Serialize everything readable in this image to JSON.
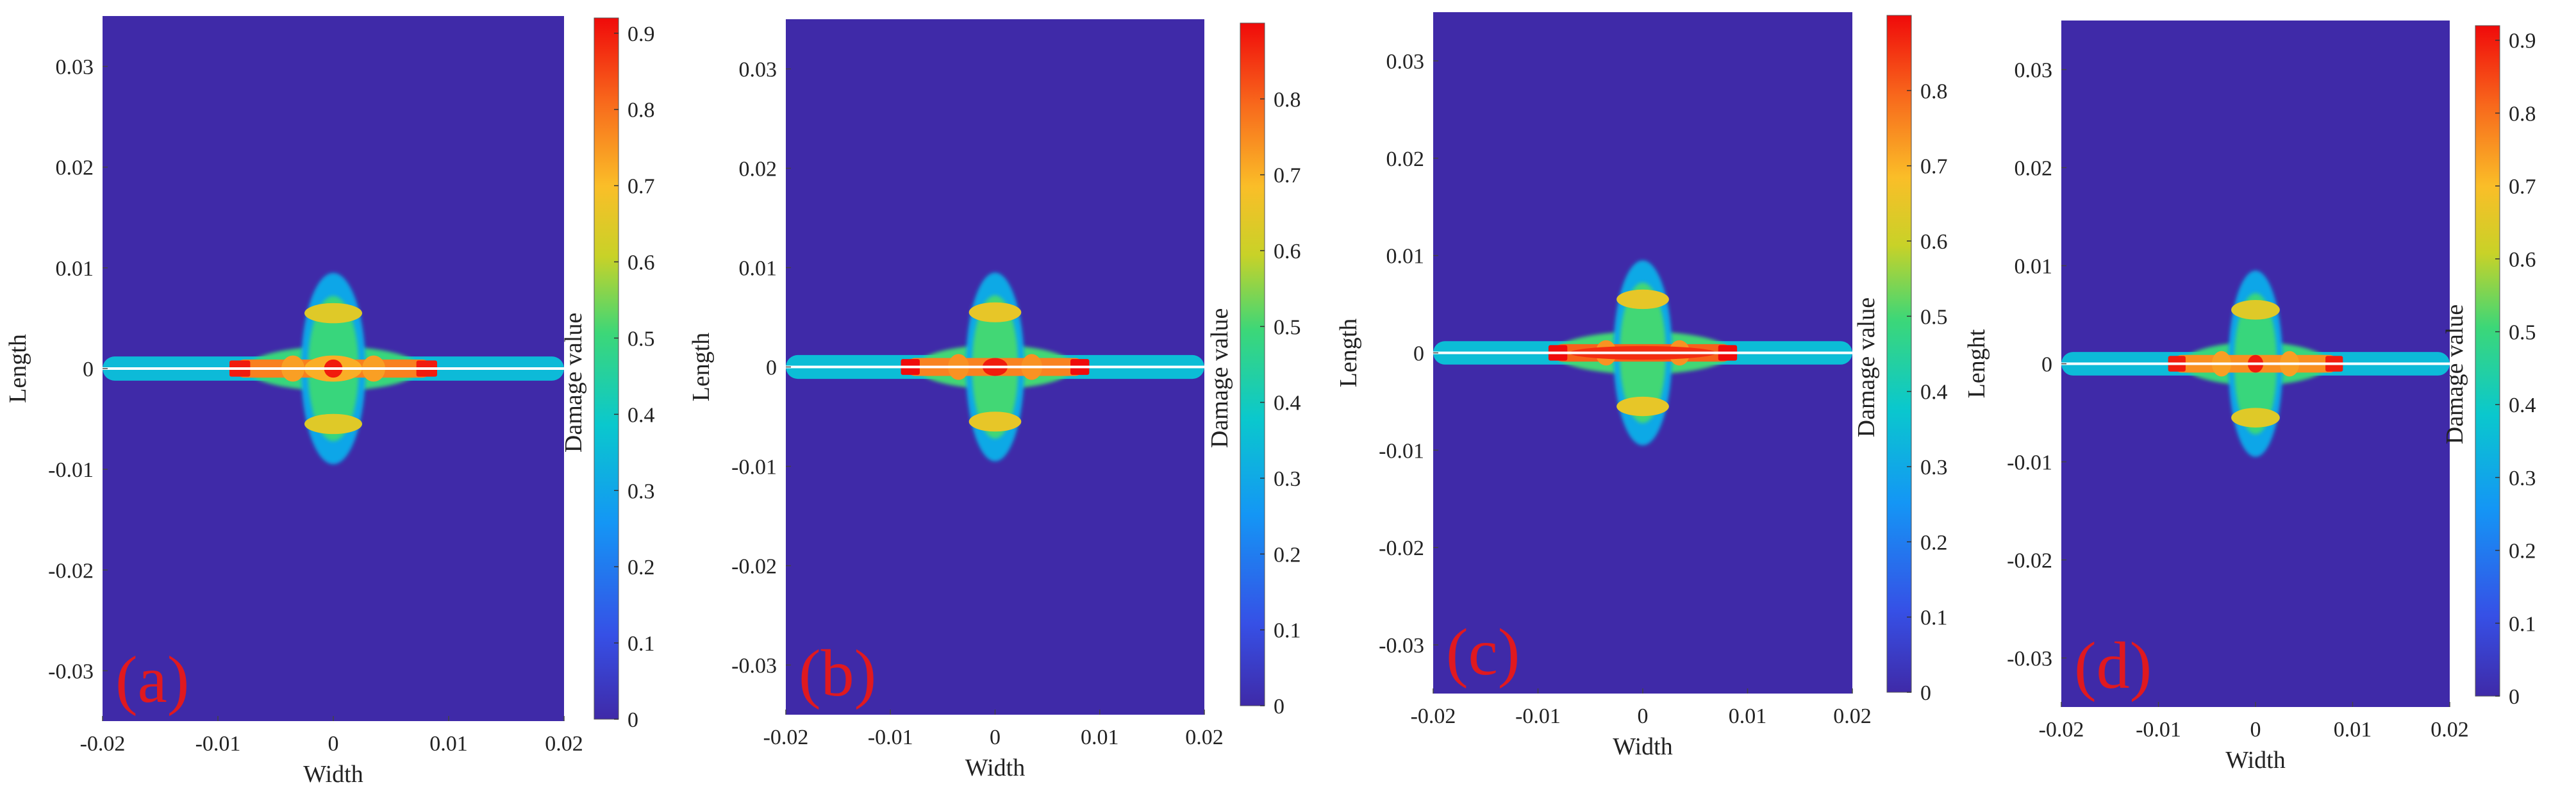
{
  "chart_data": [
    {
      "type": "heatmap",
      "panel_label": "(a)",
      "xlabel": "Width",
      "ylabel": "Length",
      "colorbar_label": "Damage value",
      "xlim": [
        -0.02,
        0.02
      ],
      "ylim": [
        -0.035,
        0.035
      ],
      "xticks": [
        -0.02,
        -0.01,
        0,
        0.01,
        0.02
      ],
      "xtick_labels": [
        "-0.02",
        "-0.01",
        "0",
        "0.01",
        "0.02"
      ],
      "yticks": [
        -0.03,
        -0.02,
        -0.01,
        0,
        0.01,
        0.02,
        0.03
      ],
      "ytick_labels": [
        "-0.03",
        "-0.02",
        "-0.01",
        "0",
        "0.01",
        "0.02",
        "0.03"
      ],
      "colorbar_range": [
        0,
        0.92
      ],
      "colorbar_ticks": [
        0,
        0.1,
        0.2,
        0.3,
        0.4,
        0.5,
        0.6,
        0.7,
        0.8,
        0.9
      ],
      "colorbar_tick_labels": [
        "0",
        "0.1",
        "0.2",
        "0.3",
        "0.4",
        "0.5",
        "0.6",
        "0.7",
        "0.8",
        "0.9"
      ],
      "crack": {
        "y": 0,
        "x_range": [
          -0.02,
          0.02
        ]
      },
      "damage_features": [
        {
          "kind": "band",
          "x_range": [
            -0.02,
            0.02
          ],
          "y_range": [
            -0.0012,
            0.0012
          ],
          "value": 0.35
        },
        {
          "kind": "halo",
          "x_range": [
            -0.0075,
            0.0075
          ],
          "y_range": [
            -0.0022,
            0.0022
          ],
          "value": 0.5
        },
        {
          "kind": "halo",
          "x_range": [
            -0.0028,
            0.0028
          ],
          "y_range": [
            -0.0095,
            0.0095
          ],
          "value": 0.3
        },
        {
          "kind": "halo",
          "x_range": [
            -0.0022,
            0.0022
          ],
          "y_range": [
            -0.0072,
            0.0072
          ],
          "value": 0.5
        },
        {
          "kind": "ring",
          "x_range": [
            -0.0025,
            0.0025
          ],
          "y_range": [
            0.0045,
            0.0065
          ],
          "value": 0.65
        },
        {
          "kind": "ring",
          "x_range": [
            -0.0025,
            0.0025
          ],
          "y_range": [
            -0.0065,
            -0.0045
          ],
          "value": 0.65
        },
        {
          "kind": "core",
          "x_range": [
            -0.0085,
            0.0085
          ],
          "y_range": [
            -0.0009,
            0.0009
          ],
          "value": 0.78
        },
        {
          "kind": "blob",
          "x_range": [
            -0.0045,
            -0.0025
          ],
          "y_range": [
            -0.0013,
            0.0013
          ],
          "value": 0.74
        },
        {
          "kind": "blob",
          "x_range": [
            0.0025,
            0.0045
          ],
          "y_range": [
            -0.0013,
            0.0013
          ],
          "value": 0.74
        },
        {
          "kind": "blob",
          "x_range": [
            -0.0025,
            0.0025
          ],
          "y_range": [
            -0.0013,
            0.0013
          ],
          "value": 0.72
        },
        {
          "kind": "peak",
          "x_range": [
            -0.0008,
            0.0008
          ],
          "y_range": [
            -0.0009,
            0.0009
          ],
          "value": 0.9
        },
        {
          "kind": "tip",
          "x_range": [
            -0.009,
            -0.0072
          ],
          "y_range": [
            -0.0008,
            0.0008
          ],
          "value": 0.9
        },
        {
          "kind": "tip",
          "x_range": [
            0.0072,
            0.009
          ],
          "y_range": [
            -0.0008,
            0.0008
          ],
          "value": 0.9
        }
      ]
    },
    {
      "type": "heatmap",
      "panel_label": "(b)",
      "xlabel": "Width",
      "ylabel": "Length",
      "colorbar_label": "Damage value",
      "xlim": [
        -0.02,
        0.02
      ],
      "ylim": [
        -0.035,
        0.035
      ],
      "xticks": [
        -0.02,
        -0.01,
        0,
        0.01,
        0.02
      ],
      "xtick_labels": [
        "-0.02",
        "-0.01",
        "0",
        "0.01",
        "0.02"
      ],
      "yticks": [
        -0.03,
        -0.02,
        -0.01,
        0,
        0.01,
        0.02,
        0.03
      ],
      "ytick_labels": [
        "-0.03",
        "-0.02",
        "-0.01",
        "0",
        "0.01",
        "0.02",
        "0.03"
      ],
      "colorbar_range": [
        0,
        0.9
      ],
      "colorbar_ticks": [
        0,
        0.1,
        0.2,
        0.3,
        0.4,
        0.5,
        0.6,
        0.7,
        0.8
      ],
      "colorbar_tick_labels": [
        "0",
        "0.1",
        "0.2",
        "0.3",
        "0.4",
        "0.5",
        "0.6",
        "0.7",
        "0.8"
      ],
      "crack": {
        "y": 0,
        "x_range": [
          -0.02,
          0.02
        ]
      },
      "damage_features": [
        {
          "kind": "band",
          "x_range": [
            -0.02,
            0.02
          ],
          "y_range": [
            -0.0012,
            0.0012
          ],
          "value": 0.35
        },
        {
          "kind": "halo",
          "x_range": [
            -0.0075,
            0.0075
          ],
          "y_range": [
            -0.0022,
            0.0022
          ],
          "value": 0.5
        },
        {
          "kind": "halo",
          "x_range": [
            -0.0028,
            0.0028
          ],
          "y_range": [
            -0.0095,
            0.0095
          ],
          "value": 0.3
        },
        {
          "kind": "halo",
          "x_range": [
            -0.0022,
            0.0022
          ],
          "y_range": [
            -0.0072,
            0.0072
          ],
          "value": 0.5
        },
        {
          "kind": "ring",
          "x_range": [
            -0.0025,
            0.0025
          ],
          "y_range": [
            0.0045,
            0.0065
          ],
          "value": 0.65
        },
        {
          "kind": "ring",
          "x_range": [
            -0.0025,
            0.0025
          ],
          "y_range": [
            -0.0065,
            -0.0045
          ],
          "value": 0.65
        },
        {
          "kind": "core",
          "x_range": [
            -0.0085,
            0.0085
          ],
          "y_range": [
            -0.0009,
            0.0009
          ],
          "value": 0.76
        },
        {
          "kind": "blob",
          "x_range": [
            -0.0045,
            -0.0025
          ],
          "y_range": [
            -0.0013,
            0.0013
          ],
          "value": 0.74
        },
        {
          "kind": "blob",
          "x_range": [
            0.0025,
            0.0045
          ],
          "y_range": [
            -0.0013,
            0.0013
          ],
          "value": 0.74
        },
        {
          "kind": "peak",
          "x_range": [
            -0.0012,
            0.0012
          ],
          "y_range": [
            -0.0009,
            0.0009
          ],
          "value": 0.88
        },
        {
          "kind": "tip",
          "x_range": [
            -0.009,
            -0.0072
          ],
          "y_range": [
            -0.0008,
            0.0008
          ],
          "value": 0.9
        },
        {
          "kind": "tip",
          "x_range": [
            0.0072,
            0.009
          ],
          "y_range": [
            -0.0008,
            0.0008
          ],
          "value": 0.9
        }
      ]
    },
    {
      "type": "heatmap",
      "panel_label": "(c)",
      "xlabel": "Width",
      "ylabel": "Length",
      "colorbar_label": "Damage value",
      "xlim": [
        -0.02,
        0.02
      ],
      "ylim": [
        -0.035,
        0.035
      ],
      "xticks": [
        -0.02,
        -0.01,
        0,
        0.01,
        0.02
      ],
      "xtick_labels": [
        "-0.02",
        "-0.01",
        "0",
        "0.01",
        "0.02"
      ],
      "yticks": [
        -0.03,
        -0.02,
        -0.01,
        0,
        0.01,
        0.02,
        0.03
      ],
      "ytick_labels": [
        "-0.03",
        "-0.02",
        "-0.01",
        "0",
        "0.01",
        "0.02",
        "0.03"
      ],
      "colorbar_range": [
        0,
        0.9
      ],
      "colorbar_ticks": [
        0,
        0.1,
        0.2,
        0.3,
        0.4,
        0.5,
        0.6,
        0.7,
        0.8
      ],
      "colorbar_tick_labels": [
        "0",
        "0.1",
        "0.2",
        "0.3",
        "0.4",
        "0.5",
        "0.6",
        "0.7",
        "0.8"
      ],
      "crack": {
        "y": 0,
        "x_range": [
          -0.02,
          0.02
        ]
      },
      "damage_features": [
        {
          "kind": "band",
          "x_range": [
            -0.02,
            0.02
          ],
          "y_range": [
            -0.0012,
            0.0012
          ],
          "value": 0.35
        },
        {
          "kind": "halo",
          "x_range": [
            -0.0085,
            0.0085
          ],
          "y_range": [
            -0.0022,
            0.0022
          ],
          "value": 0.5
        },
        {
          "kind": "halo",
          "x_range": [
            -0.0028,
            0.0028
          ],
          "y_range": [
            -0.0095,
            0.0095
          ],
          "value": 0.3
        },
        {
          "kind": "halo",
          "x_range": [
            -0.0022,
            0.0022
          ],
          "y_range": [
            -0.0072,
            0.0072
          ],
          "value": 0.5
        },
        {
          "kind": "ring",
          "x_range": [
            -0.0025,
            0.0025
          ],
          "y_range": [
            0.0045,
            0.0065
          ],
          "value": 0.65
        },
        {
          "kind": "ring",
          "x_range": [
            -0.0025,
            0.0025
          ],
          "y_range": [
            -0.0065,
            -0.0045
          ],
          "value": 0.65
        },
        {
          "kind": "core",
          "x_range": [
            -0.0085,
            0.0085
          ],
          "y_range": [
            -0.0009,
            0.0009
          ],
          "value": 0.8
        },
        {
          "kind": "blob",
          "x_range": [
            -0.0045,
            -0.0025
          ],
          "y_range": [
            -0.0013,
            0.0013
          ],
          "value": 0.74
        },
        {
          "kind": "blob",
          "x_range": [
            0.0025,
            0.0045
          ],
          "y_range": [
            -0.0013,
            0.0013
          ],
          "value": 0.74
        },
        {
          "kind": "peak",
          "x_range": [
            -0.007,
            0.007
          ],
          "y_range": [
            -0.0007,
            0.0007
          ],
          "value": 0.86
        },
        {
          "kind": "tip",
          "x_range": [
            -0.009,
            -0.0072
          ],
          "y_range": [
            -0.0008,
            0.0008
          ],
          "value": 0.9
        },
        {
          "kind": "tip",
          "x_range": [
            0.0072,
            0.009
          ],
          "y_range": [
            -0.0008,
            0.0008
          ],
          "value": 0.9
        }
      ]
    },
    {
      "type": "heatmap",
      "panel_label": "(d)",
      "xlabel": "Width",
      "ylabel": "Lenght",
      "colorbar_label": "Damage value",
      "xlim": [
        -0.02,
        0.02
      ],
      "ylim": [
        -0.035,
        0.035
      ],
      "xticks": [
        -0.02,
        -0.01,
        0,
        0.01,
        0.02
      ],
      "xtick_labels": [
        "-0.02",
        "-0.01",
        "0",
        "0.01",
        "0.02"
      ],
      "yticks": [
        -0.03,
        -0.02,
        -0.01,
        0,
        0.01,
        0.02,
        0.03
      ],
      "ytick_labels": [
        "-0.03",
        "-0.02",
        "-0.01",
        "0",
        "0.01",
        "0.02",
        "0.03"
      ],
      "colorbar_range": [
        0,
        0.92
      ],
      "colorbar_ticks": [
        0,
        0.1,
        0.2,
        0.3,
        0.4,
        0.5,
        0.6,
        0.7,
        0.8,
        0.9
      ],
      "colorbar_tick_labels": [
        "0",
        "0.1",
        "0.2",
        "0.3",
        "0.4",
        "0.5",
        "0.6",
        "0.7",
        "0.8",
        "0.9"
      ],
      "crack": {
        "y": 0,
        "x_range": [
          -0.02,
          0.02
        ]
      },
      "damage_features": [
        {
          "kind": "band",
          "x_range": [
            -0.02,
            0.02
          ],
          "y_range": [
            -0.0012,
            0.0012
          ],
          "value": 0.35
        },
        {
          "kind": "halo",
          "x_range": [
            -0.0075,
            0.0075
          ],
          "y_range": [
            -0.0022,
            0.0022
          ],
          "value": 0.5
        },
        {
          "kind": "halo",
          "x_range": [
            -0.0028,
            0.0028
          ],
          "y_range": [
            -0.0095,
            0.0095
          ],
          "value": 0.3
        },
        {
          "kind": "halo",
          "x_range": [
            -0.0022,
            0.0022
          ],
          "y_range": [
            -0.0072,
            0.0072
          ],
          "value": 0.5
        },
        {
          "kind": "ring",
          "x_range": [
            -0.0025,
            0.0025
          ],
          "y_range": [
            0.0045,
            0.0065
          ],
          "value": 0.65
        },
        {
          "kind": "ring",
          "x_range": [
            -0.0025,
            0.0025
          ],
          "y_range": [
            -0.0065,
            -0.0045
          ],
          "value": 0.65
        },
        {
          "kind": "core",
          "x_range": [
            -0.0085,
            0.0085
          ],
          "y_range": [
            -0.0009,
            0.0009
          ],
          "value": 0.76
        },
        {
          "kind": "blob",
          "x_range": [
            -0.0045,
            -0.0025
          ],
          "y_range": [
            -0.0013,
            0.0013
          ],
          "value": 0.74
        },
        {
          "kind": "blob",
          "x_range": [
            0.0025,
            0.0045
          ],
          "y_range": [
            -0.0013,
            0.0013
          ],
          "value": 0.74
        },
        {
          "kind": "peak",
          "x_range": [
            -0.0008,
            0.0008
          ],
          "y_range": [
            -0.0009,
            0.0009
          ],
          "value": 0.9
        },
        {
          "kind": "tip",
          "x_range": [
            -0.009,
            -0.0072
          ],
          "y_range": [
            -0.0008,
            0.0008
          ],
          "value": 0.9
        },
        {
          "kind": "tip",
          "x_range": [
            0.0072,
            0.009
          ],
          "y_range": [
            -0.0008,
            0.0008
          ],
          "value": 0.9
        }
      ]
    }
  ],
  "colors": {
    "panel_label": "#e0191f",
    "background_low": "#3f2aa8",
    "crack_line": "#ffffff"
  }
}
